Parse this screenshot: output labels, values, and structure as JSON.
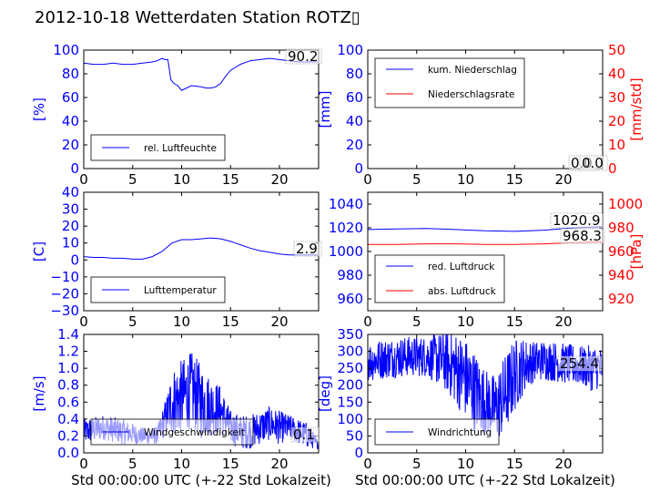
{
  "title": "2012-10-18 Wetterdaten Station ROTZ▯",
  "xlabel": "Std 00:00:00 UTC (+-22 Std Lokalzeit)",
  "colors": {
    "left_axis": "#0000ff",
    "right_axis": "#ff0000",
    "series_blue": "#0000ff",
    "series_red": "#ff0000"
  },
  "chart_data": [
    {
      "type": "line",
      "xlim": [
        0,
        24
      ],
      "x_ticks": [
        0,
        5,
        10,
        15,
        20
      ],
      "ylabel": "[%]",
      "ylim": [
        0,
        100
      ],
      "y_ticks": [
        0,
        20,
        40,
        60,
        80,
        100
      ],
      "legend": "bottom-left",
      "callout": "90.2",
      "series": [
        {
          "name": "rel. Luftfeuchte",
          "color": "#0000ff",
          "x": [
            0,
            1,
            2,
            3,
            4,
            5,
            6,
            7,
            7.5,
            8,
            8.3,
            8.6,
            8.9,
            9.2,
            9.6,
            10,
            11,
            12,
            12.5,
            13,
            13.5,
            14,
            14.5,
            15,
            16,
            17,
            18,
            19,
            20,
            21,
            22,
            23,
            23.9
          ],
          "values": [
            89,
            88,
            88,
            89,
            88,
            88,
            89,
            90,
            91,
            93,
            92,
            92,
            75,
            72,
            70,
            66,
            70,
            69,
            68,
            68,
            69,
            72,
            78,
            83,
            88,
            91,
            92,
            93,
            92,
            91,
            90,
            90,
            90.2
          ]
        }
      ]
    },
    {
      "type": "line",
      "xlim": [
        0,
        24
      ],
      "x_ticks": [
        0,
        5,
        10,
        15,
        20
      ],
      "ylabel": "[mm]",
      "ylim": [
        0,
        100
      ],
      "y_ticks": [
        0,
        20,
        40,
        60,
        80,
        100
      ],
      "ylabel_right": "[mm/std]",
      "ylim_right": [
        0,
        50
      ],
      "y_ticks_right": [
        0,
        10,
        20,
        30,
        40,
        50
      ],
      "legend": "top-left",
      "callouts": [
        "0.0",
        "0.0"
      ],
      "series": [
        {
          "name": "kum. Niederschlag",
          "color": "#0000ff",
          "axis": "left",
          "x": [
            0,
            24
          ],
          "values": [
            0,
            0
          ]
        },
        {
          "name": "Niederschlagsrate",
          "color": "#ff0000",
          "axis": "right",
          "x": [
            0,
            24
          ],
          "values": [
            0,
            0
          ]
        }
      ]
    },
    {
      "type": "line",
      "xlim": [
        0,
        24
      ],
      "x_ticks": [
        0,
        5,
        10,
        15,
        20
      ],
      "ylabel": "[C]",
      "ylim": [
        -30,
        40
      ],
      "y_ticks": [
        -30,
        -20,
        -10,
        0,
        10,
        20,
        30,
        40
      ],
      "legend": "bottom-left",
      "callout": "2.9",
      "series": [
        {
          "name": "Lufttemperatur",
          "color": "#0000ff",
          "x": [
            0,
            1,
            2,
            3,
            4,
            5,
            6,
            7,
            8,
            9,
            10,
            11,
            12,
            13,
            14,
            15,
            16,
            17,
            18,
            19,
            20,
            21,
            22,
            23,
            23.9
          ],
          "values": [
            2,
            1.5,
            1.5,
            1,
            1,
            0.5,
            0.5,
            2,
            5,
            10,
            12,
            12,
            12.5,
            13,
            12.5,
            11,
            9,
            7,
            5.5,
            4.5,
            3.5,
            3,
            3,
            3,
            2.9
          ]
        }
      ]
    },
    {
      "type": "line",
      "xlim": [
        0,
        24
      ],
      "x_ticks": [
        0,
        5,
        10,
        15,
        20
      ],
      "ylabel": "",
      "ylim": [
        950,
        1050
      ],
      "y_ticks": [
        960,
        980,
        1000,
        1020,
        1040
      ],
      "ylabel_right": "[hPa]",
      "ylim_right": [
        910,
        1010
      ],
      "y_ticks_right": [
        920,
        940,
        960,
        980,
        1000
      ],
      "legend": "bottom-left",
      "callouts": [
        "1020.9",
        "968.3"
      ],
      "series": [
        {
          "name": "red. Luftdruck",
          "color": "#0000ff",
          "axis": "left",
          "x": [
            0,
            3,
            6,
            9,
            12,
            15,
            18,
            21,
            23.9
          ],
          "values": [
            1018.5,
            1019,
            1019.5,
            1018.5,
            1017.5,
            1017,
            1018,
            1020,
            1020.9
          ]
        },
        {
          "name": "abs. Luftdruck",
          "color": "#ff0000",
          "axis": "right",
          "x": [
            0,
            3,
            6,
            9,
            12,
            15,
            18,
            21,
            23.9
          ],
          "values": [
            966,
            966,
            966.5,
            966.5,
            966,
            966,
            966.5,
            967.5,
            968.3
          ]
        }
      ]
    },
    {
      "type": "line",
      "xlim": [
        0,
        24
      ],
      "x_ticks": [
        0,
        5,
        10,
        15,
        20
      ],
      "ylabel": "[m/s]",
      "ylim": [
        0,
        1.4
      ],
      "y_ticks": [
        0.0,
        0.2,
        0.4,
        0.6,
        0.8,
        1.0,
        1.2,
        1.4
      ],
      "legend": "bottom-left",
      "callout": "0.1",
      "series": [
        {
          "name": "Windgeschwindigkeit",
          "color": "#0000ff",
          "noisy": true,
          "x": [
            0,
            2,
            4,
            6,
            7.5,
            8.5,
            9,
            10,
            11,
            12,
            13,
            14,
            15,
            16,
            17,
            18,
            19,
            20,
            21,
            22,
            23,
            23.9
          ],
          "values": [
            0.25,
            0.3,
            0.25,
            0.2,
            0.2,
            0.45,
            0.6,
            0.65,
            0.75,
            0.6,
            0.55,
            0.5,
            0.3,
            0.25,
            0.25,
            0.3,
            0.35,
            0.3,
            0.3,
            0.25,
            0.2,
            0.1
          ],
          "amplitude": [
            0.15,
            0.15,
            0.15,
            0.1,
            0.1,
            0.25,
            0.4,
            0.45,
            0.45,
            0.45,
            0.35,
            0.3,
            0.2,
            0.2,
            0.2,
            0.2,
            0.2,
            0.2,
            0.15,
            0.15,
            0.15,
            0.05
          ]
        }
      ]
    },
    {
      "type": "line",
      "xlim": [
        0,
        24
      ],
      "x_ticks": [
        0,
        5,
        10,
        15,
        20
      ],
      "ylabel": "[deg]",
      "ylim": [
        0,
        350
      ],
      "y_ticks": [
        0,
        50,
        100,
        150,
        200,
        250,
        300,
        350
      ],
      "legend": "bottom-left",
      "callout": "254.4",
      "series": [
        {
          "name": "Windrichtung",
          "color": "#0000ff",
          "noisy": true,
          "x": [
            0,
            2,
            4,
            6,
            8,
            9,
            10,
            11,
            12,
            13,
            14,
            15,
            16,
            17,
            18,
            19,
            20,
            21,
            22,
            23,
            23.9
          ],
          "values": [
            270,
            280,
            285,
            285,
            270,
            250,
            220,
            180,
            150,
            130,
            170,
            230,
            260,
            270,
            275,
            270,
            265,
            260,
            255,
            250,
            254
          ],
          "amplitude": [
            60,
            60,
            60,
            60,
            90,
            110,
            120,
            120,
            100,
            100,
            120,
            110,
            80,
            60,
            60,
            60,
            60,
            60,
            60,
            70,
            60
          ]
        }
      ]
    }
  ]
}
